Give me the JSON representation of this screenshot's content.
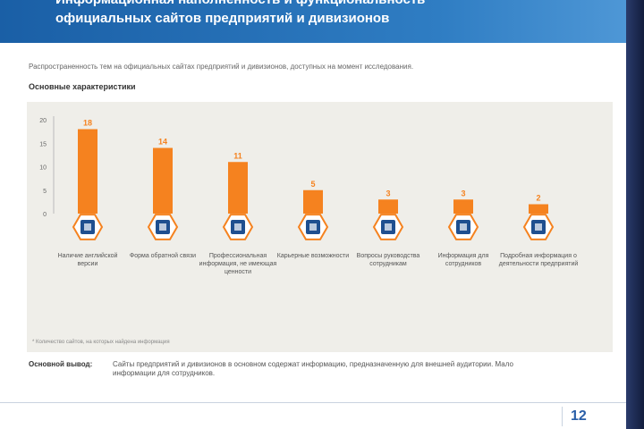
{
  "header": {
    "title_line1": "Информационная наполненность и функциональность",
    "title_line2": "официальных сайтов предприятий и дивизионов"
  },
  "intro_text": "Распространенность тем на официальных сайтах предприятий и дивизионов, доступных на момент исследования.",
  "subtitle": "Основные характеристики",
  "chart_data": {
    "type": "bar",
    "categories": [
      "Наличие английской версии",
      "Форма обратной связи",
      "Профессиональная информация, не имеющая ценности",
      "Карьерные возможности",
      "Вопросы руководства сотрудникам",
      "Информация для сотрудников",
      "Подробная информация о деятельности предприятий"
    ],
    "values": [
      18,
      14,
      11,
      5,
      3,
      3,
      2
    ],
    "yticks": [
      "0",
      "5",
      "10",
      "15",
      "20"
    ],
    "ylim": [
      0,
      20
    ],
    "bar_color": "#f5821f",
    "icon_names": [
      "document-icon",
      "building-icon",
      "people-icon",
      "briefcase-icon",
      "group-icon",
      "tablet-icon",
      "grid-icon"
    ]
  },
  "footnote": "* Количество сайтов, на которых найдена информация",
  "conclusion": {
    "label": "Основной вывод:",
    "text": "Сайты предприятий и дивизионов в основном содержат информацию, предназначенную для внешней аудитории. Мало информации для сотрудников."
  },
  "page_number": "12",
  "colors": {
    "header": "#1a5fa6",
    "accent": "#f5821f",
    "chart_bg": "#efeee9"
  }
}
